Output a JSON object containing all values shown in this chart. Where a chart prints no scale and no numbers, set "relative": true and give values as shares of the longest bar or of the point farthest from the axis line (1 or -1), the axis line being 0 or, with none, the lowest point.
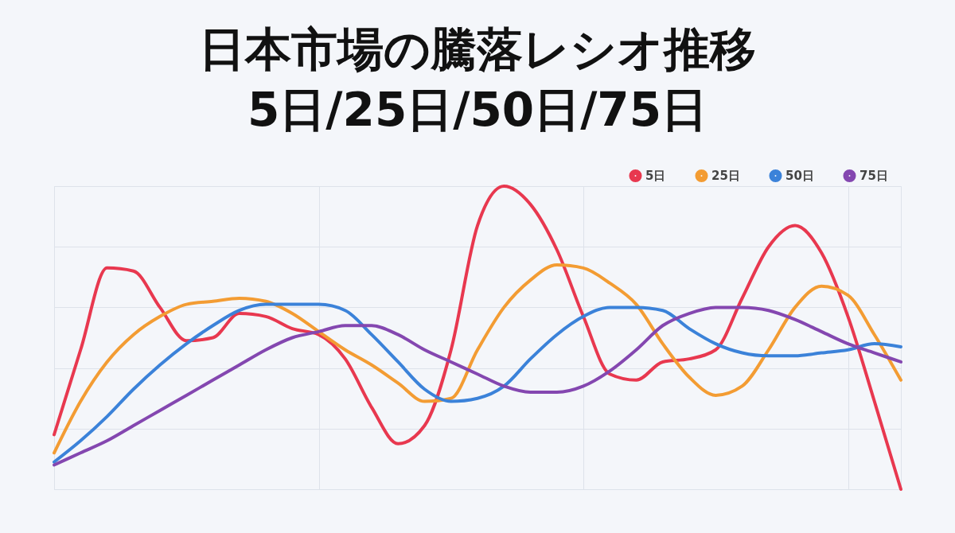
{
  "chart_data": {
    "type": "line",
    "title": "日本市場の騰落レシオ推移\n5日/25日/50日/75日",
    "relative": true,
    "grid": true,
    "legend": "top right",
    "categories": [
      null,
      null,
      null,
      null,
      null,
      null,
      null,
      null,
      null,
      null,
      null,
      null,
      null,
      null,
      null,
      null,
      null,
      null,
      null,
      null,
      null,
      null,
      null,
      null,
      null,
      null,
      null,
      null,
      null,
      null,
      null,
      null,
      null
    ],
    "series": [
      {
        "name": "5日",
        "color": "#e8384f",
        "values": [
          0.18,
          0.46,
          0.73,
          0.72,
          0.6,
          0.49,
          0.5,
          0.58,
          0.57,
          0.53,
          0.51,
          0.43,
          0.27,
          0.15,
          0.21,
          0.46,
          0.87,
          1.0,
          0.94,
          0.79,
          0.57,
          0.38,
          0.36,
          0.42,
          0.43,
          0.46,
          0.63,
          0.8,
          0.87,
          0.78,
          0.57,
          0.29,
          0
        ]
      },
      {
        "name": "25日",
        "color": "#f39c33",
        "values": [
          0.12,
          0.29,
          0.42,
          0.51,
          0.57,
          0.61,
          0.62,
          0.63,
          0.62,
          0.58,
          0.52,
          0.46,
          0.41,
          0.35,
          0.29,
          0.3,
          0.46,
          0.6,
          0.69,
          0.74,
          0.73,
          0.68,
          0.61,
          0.48,
          0.37,
          0.31,
          0.34,
          0.46,
          0.6,
          0.67,
          0.64,
          0.51,
          0.36
        ]
      },
      {
        "name": "50日",
        "color": "#3b82d9",
        "values": [
          0.09,
          0.16,
          0.24,
          0.33,
          0.41,
          0.48,
          0.54,
          0.59,
          0.61,
          0.61,
          0.61,
          0.59,
          0.51,
          0.42,
          0.33,
          0.29,
          0.3,
          0.34,
          0.43,
          0.51,
          0.57,
          0.6,
          0.6,
          0.59,
          0.53,
          0.48,
          0.45,
          0.44,
          0.44,
          0.45,
          0.46,
          0.48,
          0.47
        ]
      },
      {
        "name": "75日",
        "color": "#8447b0",
        "values": [
          0.08,
          0.12,
          0.16,
          0.21,
          0.26,
          0.31,
          0.36,
          0.41,
          0.46,
          0.5,
          0.52,
          0.54,
          0.54,
          0.51,
          0.46,
          0.42,
          0.38,
          0.34,
          0.32,
          0.32,
          0.34,
          0.39,
          0.46,
          0.54,
          0.58,
          0.6,
          0.6,
          0.59,
          0.56,
          0.52,
          0.48,
          0.45,
          0.42
        ]
      }
    ]
  }
}
